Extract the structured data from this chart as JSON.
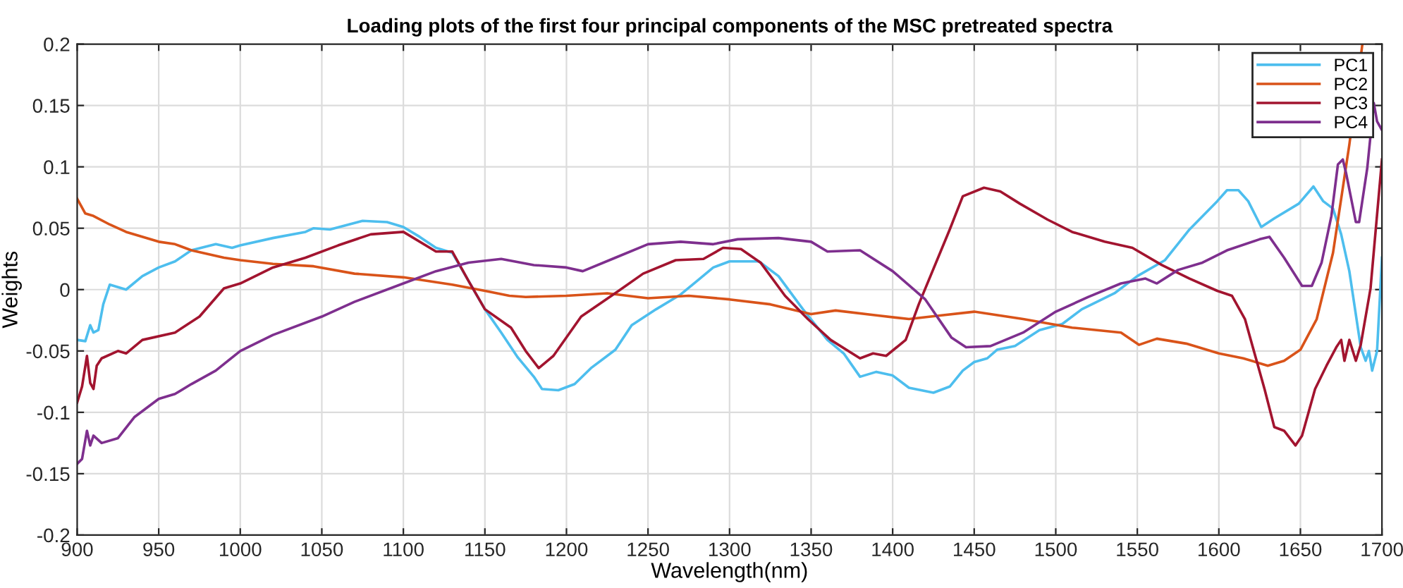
{
  "chart_data": {
    "type": "line",
    "title": "Loading plots of the first four principal components of the MSC pretreated spectra",
    "xlabel": "Wavelength(nm)",
    "ylabel": "Weights",
    "xlim": [
      900,
      1700
    ],
    "ylim": [
      -0.2,
      0.2
    ],
    "xticks": [
      900,
      950,
      1000,
      1050,
      1100,
      1150,
      1200,
      1250,
      1300,
      1350,
      1400,
      1450,
      1500,
      1550,
      1600,
      1650,
      1700
    ],
    "yticks": [
      -0.2,
      -0.15,
      -0.1,
      -0.05,
      0,
      0.05,
      0.1,
      0.15,
      0.2
    ],
    "grid": true,
    "legend": "top right",
    "series": [
      {
        "name": "PC1",
        "color": "#4dbeee",
        "x": [
          900,
          905,
          908,
          910,
          913,
          916,
          920,
          925,
          930,
          940,
          950,
          960,
          970,
          985,
          995,
          1000,
          1020,
          1040,
          1045,
          1055,
          1075,
          1090,
          1100,
          1110,
          1120,
          1130,
          1140,
          1150,
          1160,
          1170,
          1180,
          1185,
          1195,
          1205,
          1215,
          1230,
          1240,
          1255,
          1270,
          1280,
          1290,
          1300,
          1318,
          1330,
          1345,
          1360,
          1370,
          1380,
          1390,
          1400,
          1410,
          1425,
          1435,
          1443,
          1450,
          1458,
          1464,
          1475,
          1490,
          1504,
          1516,
          1536,
          1550,
          1567,
          1582,
          1599,
          1605,
          1612,
          1618,
          1626,
          1634,
          1649,
          1658,
          1664,
          1670,
          1675,
          1680,
          1687,
          1690,
          1692,
          1694,
          1697,
          1700
        ],
        "values": [
          -0.041,
          -0.042,
          -0.029,
          -0.035,
          -0.033,
          -0.012,
          0.004,
          0.002,
          0,
          0.011,
          0.018,
          0.023,
          0.032,
          0.037,
          0.034,
          0.036,
          0.042,
          0.047,
          0.05,
          0.049,
          0.056,
          0.055,
          0.051,
          0.043,
          0.034,
          0.03,
          0.007,
          -0.016,
          -0.035,
          -0.055,
          -0.071,
          -0.081,
          -0.082,
          -0.077,
          -0.064,
          -0.049,
          -0.029,
          -0.016,
          -0.004,
          0.007,
          0.018,
          0.023,
          0.023,
          0.011,
          -0.016,
          -0.041,
          -0.052,
          -0.071,
          -0.067,
          -0.07,
          -0.08,
          -0.084,
          -0.079,
          -0.066,
          -0.059,
          -0.056,
          -0.049,
          -0.046,
          -0.033,
          -0.028,
          -0.016,
          -0.003,
          0.011,
          0.024,
          0.049,
          0.072,
          0.081,
          0.081,
          0.072,
          0.051,
          0.058,
          0.07,
          0.084,
          0.072,
          0.066,
          0.045,
          0.015,
          -0.047,
          -0.058,
          -0.05,
          -0.066,
          -0.05,
          0.026
        ]
      },
      {
        "name": "PC2",
        "color": "#d95319",
        "x": [
          900,
          905,
          910,
          920,
          930,
          950,
          960,
          970,
          990,
          1000,
          1020,
          1045,
          1070,
          1100,
          1130,
          1150,
          1165,
          1175,
          1200,
          1225,
          1250,
          1275,
          1300,
          1325,
          1350,
          1365,
          1390,
          1410,
          1430,
          1450,
          1480,
          1510,
          1540,
          1551,
          1562,
          1580,
          1600,
          1615,
          1630,
          1640,
          1650,
          1660,
          1670,
          1680,
          1688
        ],
        "values": [
          0.074,
          0.062,
          0.06,
          0.053,
          0.047,
          0.039,
          0.037,
          0.032,
          0.026,
          0.024,
          0.021,
          0.019,
          0.013,
          0.01,
          0.004,
          -0.001,
          -0.005,
          -0.006,
          -0.005,
          -0.003,
          -0.007,
          -0.005,
          -0.008,
          -0.012,
          -0.02,
          -0.017,
          -0.021,
          -0.024,
          -0.021,
          -0.018,
          -0.024,
          -0.031,
          -0.035,
          -0.045,
          -0.04,
          -0.044,
          -0.052,
          -0.056,
          -0.062,
          -0.058,
          -0.049,
          -0.024,
          0.03,
          0.118,
          0.2
        ]
      },
      {
        "name": "PC3",
        "color": "#a2142f",
        "x": [
          900,
          903,
          906,
          908,
          910,
          912,
          915,
          925,
          930,
          940,
          960,
          975,
          990,
          1000,
          1020,
          1040,
          1060,
          1080,
          1100,
          1120,
          1130,
          1140,
          1150,
          1166,
          1175,
          1183,
          1192,
          1209,
          1232,
          1247,
          1267,
          1284,
          1296,
          1307,
          1319,
          1334,
          1348,
          1362,
          1380,
          1388,
          1396,
          1408,
          1416,
          1435,
          1443,
          1456,
          1466,
          1478,
          1495,
          1510,
          1530,
          1547,
          1565,
          1582,
          1599,
          1608,
          1616,
          1628,
          1634,
          1640,
          1647,
          1651,
          1659,
          1666,
          1672,
          1675,
          1677,
          1680,
          1684,
          1687,
          1693,
          1700
        ],
        "values": [
          -0.092,
          -0.079,
          -0.054,
          -0.076,
          -0.081,
          -0.062,
          -0.056,
          -0.05,
          -0.052,
          -0.041,
          -0.035,
          -0.022,
          0.001,
          0.005,
          0.018,
          0.026,
          0.036,
          0.045,
          0.047,
          0.031,
          0.031,
          0.007,
          -0.016,
          -0.031,
          -0.05,
          -0.064,
          -0.054,
          -0.022,
          -0.001,
          0.013,
          0.024,
          0.025,
          0.034,
          0.033,
          0.022,
          -0.005,
          -0.024,
          -0.041,
          -0.056,
          -0.052,
          -0.054,
          -0.041,
          -0.012,
          0.049,
          0.076,
          0.083,
          0.08,
          0.07,
          0.057,
          0.047,
          0.039,
          0.034,
          0.02,
          0.009,
          -0.001,
          -0.005,
          -0.024,
          -0.081,
          -0.112,
          -0.115,
          -0.127,
          -0.119,
          -0.081,
          -0.062,
          -0.047,
          -0.041,
          -0.058,
          -0.041,
          -0.058,
          -0.045,
          0.001,
          0.106
        ]
      },
      {
        "name": "PC4",
        "color": "#7e2f8e",
        "x": [
          900,
          903,
          906,
          908,
          910,
          915,
          925,
          935,
          950,
          960,
          970,
          985,
          1000,
          1020,
          1050,
          1070,
          1100,
          1120,
          1140,
          1160,
          1180,
          1200,
          1210,
          1230,
          1250,
          1270,
          1290,
          1305,
          1330,
          1350,
          1360,
          1380,
          1400,
          1420,
          1436,
          1445,
          1460,
          1480,
          1500,
          1520,
          1540,
          1555,
          1562,
          1575,
          1590,
          1605,
          1625,
          1631,
          1640,
          1651,
          1657,
          1663,
          1669,
          1673,
          1676,
          1678,
          1684,
          1686,
          1691,
          1695,
          1697,
          1700
        ],
        "values": [
          -0.142,
          -0.138,
          -0.115,
          -0.127,
          -0.119,
          -0.125,
          -0.121,
          -0.104,
          -0.089,
          -0.085,
          -0.077,
          -0.066,
          -0.05,
          -0.037,
          -0.022,
          -0.01,
          0.005,
          0.015,
          0.022,
          0.025,
          0.02,
          0.018,
          0.015,
          0.026,
          0.037,
          0.039,
          0.037,
          0.041,
          0.042,
          0.039,
          0.031,
          0.032,
          0.015,
          -0.008,
          -0.039,
          -0.047,
          -0.046,
          -0.035,
          -0.018,
          -0.006,
          0.005,
          0.009,
          0.005,
          0.016,
          0.022,
          0.032,
          0.041,
          0.043,
          0.026,
          0.003,
          0.003,
          0.022,
          0.06,
          0.102,
          0.106,
          0.095,
          0.055,
          0.055,
          0.099,
          0.152,
          0.137,
          0.13
        ]
      }
    ]
  }
}
